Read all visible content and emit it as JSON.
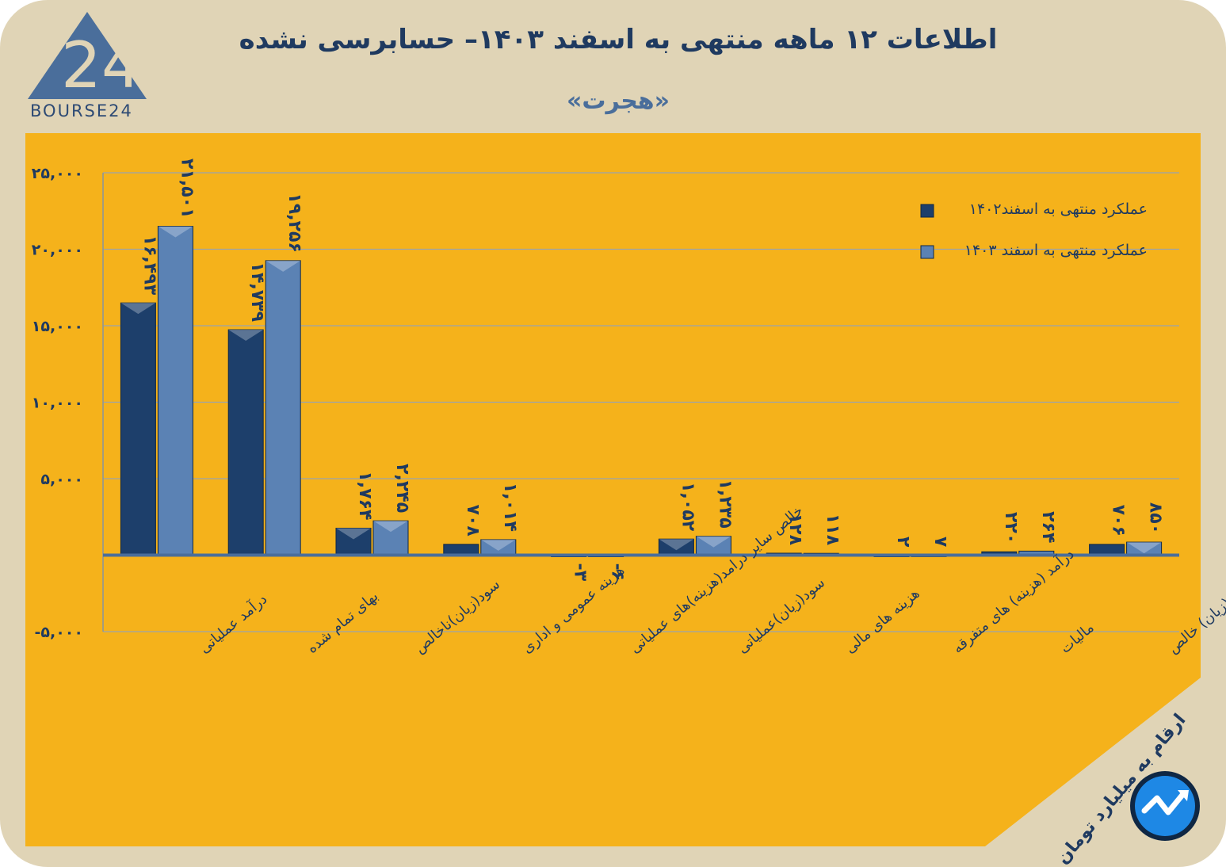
{
  "header": {
    "title": "اطلاعات ۱۲ ماهه منتهی به اسفند  ۱۴۰۳– حسابرسی نشده",
    "subtitle": "«هجرت»",
    "logo_text": "BOURSE24",
    "logo_mark": "24"
  },
  "footnote": "ارقام به میلیارد تومان",
  "colors": {
    "frame": "#e0d4b6",
    "panel": "#f5b21b",
    "series1402": "#1d3f6b",
    "series1403": "#5b82b4",
    "title": "#1f3a60"
  },
  "chart_data": {
    "type": "bar",
    "title": "اطلاعات ۱۲ ماهه منتهی به اسفند  ۱۴۰۳– حسابرسی نشده",
    "ylim": [
      -5000,
      25000
    ],
    "yticks": [
      -5000,
      0,
      5000,
      10000,
      15000,
      20000,
      25000
    ],
    "ytick_labels": [
      "-۵,۰۰۰",
      "",
      "۵,۰۰۰",
      "۱۰,۰۰۰",
      "۱۵,۰۰۰",
      "۲۰,۰۰۰",
      "۲۵,۰۰۰"
    ],
    "grid": true,
    "legend_position": "top-right",
    "categories": [
      "درآمد عملیاتی",
      "بهای تمام شده",
      "سود(زیان)ناخالص",
      "هزینه عمومی و اداری",
      "خالص سایر درامد(هزینه)های عملیاتی",
      "سود(زیان)عملیاتی",
      "هزینه های مالی",
      "درآمد (هزینه) های متفرقه",
      "مالیات",
      "سود(زیان) خالص"
    ],
    "series": [
      {
        "name": "عملکرد منتهی به اسفند۱۴۰۲",
        "values": [
          16493,
          14739,
          1764,
          708,
          -3,
          1052,
          128,
          2,
          220,
          706
        ],
        "labels": [
          "۱۶,۴۹۳",
          "۱۴,۷۳۹",
          "۱,۷۶۴",
          "۷۰۸",
          "-۳",
          "۱,۰۵۲",
          "۱۲۸",
          "۲",
          "۲۲۰",
          "۷۰۶"
        ]
      },
      {
        "name": "عملکرد منتهی به اسفند ۱۴۰۳",
        "values": [
          21501,
          19256,
          2245,
          1014,
          -6,
          1235,
          118,
          7,
          264,
          850
        ],
        "labels": [
          "۲۱,۵۰۱",
          "۱۹,۲۵۶",
          "۲,۲۴۵",
          "۱,۰۱۴",
          "-۶",
          "۱,۲۳۵",
          "۱۱۸",
          "۷",
          "۲۶۴",
          "۸۵۰"
        ]
      }
    ]
  }
}
